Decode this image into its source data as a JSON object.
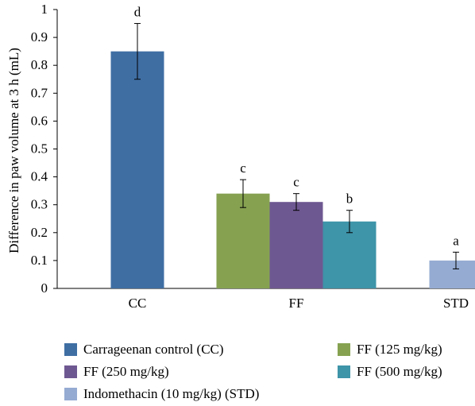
{
  "chart_data": {
    "type": "bar",
    "ylabel": "Difference in paw volume at 3 h (mL)",
    "xlabel": "",
    "ylim": [
      0,
      1
    ],
    "yticks": [
      "0",
      "0.1",
      "0.2",
      "0.3",
      "0.4",
      "0.5",
      "0.6",
      "0.7",
      "0.8",
      "0.9",
      "1"
    ],
    "groups": [
      "CC",
      "FF",
      "STD"
    ],
    "grid": false,
    "legend_position": "bottom",
    "series": [
      {
        "name": "Carrageenan control (CC)",
        "color": "#3F6EA3",
        "group": "CC",
        "value": 0.85,
        "error": 0.1,
        "label": "d"
      },
      {
        "name": "FF (125 mg/kg)",
        "color": "#86A251",
        "group": "FF",
        "value": 0.34,
        "error": 0.05,
        "label": "c"
      },
      {
        "name": "FF (250 mg/kg)",
        "color": "#6E5891",
        "group": "FF",
        "value": 0.31,
        "error": 0.03,
        "label": "c"
      },
      {
        "name": "FF (500 mg/kg)",
        "color": "#3E94A9",
        "group": "FF",
        "value": 0.24,
        "error": 0.04,
        "label": "b"
      },
      {
        "name": "Indomethacin (10 mg/kg) (STD)",
        "color": "#95ABD2",
        "group": "STD",
        "value": 0.1,
        "error": 0.03,
        "label": "a"
      }
    ]
  }
}
